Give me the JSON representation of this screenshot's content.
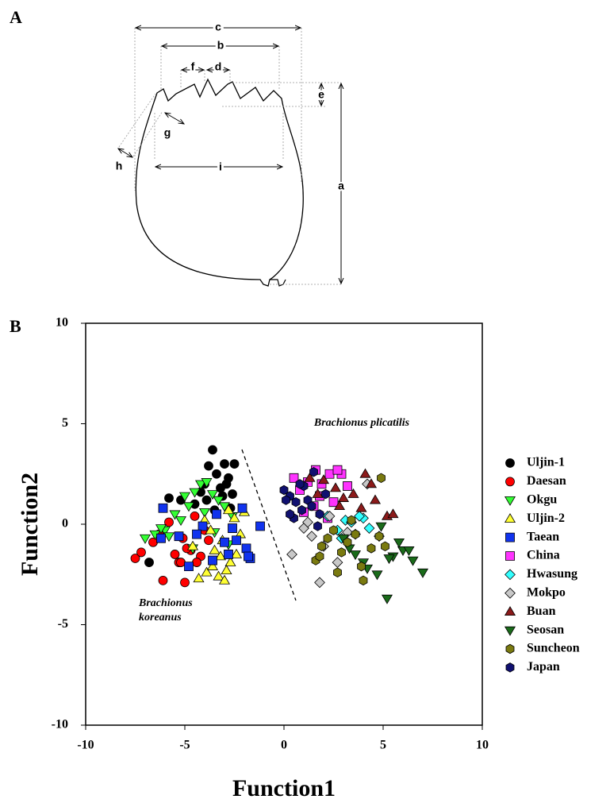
{
  "figure": {
    "panel_a": "A",
    "panel_b": "B",
    "diagram_labels": [
      "a",
      "b",
      "c",
      "d",
      "e",
      "f",
      "g",
      "h",
      "i"
    ]
  },
  "chart_data": {
    "type": "scatter",
    "x_label": "Function1",
    "y_label": "Function2",
    "xlim": [
      -10,
      10
    ],
    "ylim": [
      -10,
      10
    ],
    "xticks": [
      -10,
      -5,
      0,
      5,
      10
    ],
    "yticks": [
      -10,
      -5,
      0,
      5,
      10
    ],
    "grid": false,
    "legend": "right",
    "annotations": [
      "Brachionus plicatilis",
      "Brachionus",
      "koreanus"
    ],
    "series": [
      {
        "name": "Uljin-1",
        "color": "#000000",
        "marker": "circle",
        "x": [
          -3.6,
          -3,
          -2.5,
          -2.8,
          -3.4,
          -4,
          -3.2,
          -2.6,
          -3.9,
          -5.2,
          -5.8,
          -4.5,
          -3.5,
          -3.1,
          -2.9,
          -4.2,
          -6.8,
          -3.8,
          -2.7
        ],
        "values": [
          3.7,
          3,
          3,
          2.3,
          2.5,
          2,
          1.8,
          1.5,
          1.2,
          1.2,
          1.3,
          1,
          0.7,
          1.4,
          2,
          1.6,
          -1.9,
          2.9,
          0.8
        ]
      },
      {
        "name": "Daesan",
        "color": "#ff0000",
        "marker": "circle",
        "x": [
          -7.5,
          -7.2,
          -6.1,
          -5,
          -5.5,
          -5.3,
          -4.7,
          -4.2,
          -5.1,
          -4.9,
          -4,
          -6.3,
          -5.8,
          -4.5,
          -3.8,
          -6.6,
          -5.2,
          -4.4
        ],
        "values": [
          -1.7,
          -1.4,
          -2.8,
          -2.9,
          -1.5,
          -1.9,
          -1.3,
          -1.6,
          -0.7,
          -1.2,
          -0.3,
          -0.5,
          0.1,
          0.4,
          -0.8,
          -0.9,
          -1.9,
          -1.9
        ]
      },
      {
        "name": "Okgu",
        "color": "#33ff33",
        "marker": "triangle-down",
        "x": [
          -7,
          -6.5,
          -6,
          -5.5,
          -5,
          -4.5,
          -4.2,
          -3.9,
          -3.6,
          -3.3,
          -3,
          -2.6,
          -4.8,
          -5.8,
          -6.2,
          -4,
          -3.5,
          -2.8,
          -5.2,
          -4.6
        ],
        "values": [
          -0.7,
          -0.5,
          -0.3,
          0.5,
          1.4,
          1.6,
          2,
          2.1,
          1.5,
          1.2,
          0.9,
          0.4,
          0.9,
          -0.6,
          -0.2,
          0.6,
          -0.4,
          -1,
          0.2,
          -1.2
        ]
      },
      {
        "name": "Uljin-2",
        "color": "#ffff33",
        "marker": "triangle-up",
        "x": [
          -4.3,
          -3.9,
          -3.6,
          -3.3,
          -3,
          -2.7,
          -2.4,
          -2,
          -2.2,
          -3.5,
          -3.1,
          -2.8,
          -4,
          -3.7,
          -2.5,
          -3.2,
          -2.9,
          -4.6
        ],
        "values": [
          -2.7,
          -2.4,
          -2.1,
          -2.6,
          -2.8,
          -1.9,
          -1.5,
          0.6,
          -0.5,
          -1.3,
          -0.8,
          0.7,
          0.2,
          -0.3,
          0.3,
          -1.6,
          -2.3,
          -1.1
        ]
      },
      {
        "name": "Taean",
        "color": "#1133ee",
        "marker": "square",
        "x": [
          -6.1,
          -6.2,
          -5.3,
          -4.8,
          -4.1,
          -3.4,
          -3,
          -2.6,
          -2.1,
          -1.9,
          -1.7,
          -1.2,
          -2.4,
          -3.6,
          -4.4,
          -2.8,
          -1.8
        ],
        "values": [
          0.8,
          -0.7,
          -0.6,
          -2.1,
          -0.1,
          0.5,
          -0.9,
          -0.2,
          0.8,
          -1.2,
          -1.7,
          -0.1,
          -0.8,
          -1.8,
          -0.5,
          -1.5,
          -1.6
        ]
      },
      {
        "name": "China",
        "color": "#ff33ff",
        "marker": "square",
        "x": [
          0.5,
          0.8,
          1.2,
          1.6,
          1.8,
          2.3,
          2.5,
          2.9,
          2.2,
          1.5,
          3.2,
          1,
          2.7,
          1.9
        ],
        "values": [
          2.3,
          1.7,
          2.1,
          2.7,
          1.4,
          2.5,
          1.1,
          2.5,
          0.3,
          0.9,
          1.9,
          0.6,
          2.7,
          2
        ]
      },
      {
        "name": "Hwasung",
        "color": "#33ffff",
        "marker": "diamond",
        "x": [
          2.2,
          2.7,
          3.1,
          3.6,
          4,
          4.3,
          2.9,
          3.4,
          4.8,
          3.8
        ],
        "values": [
          0.4,
          -0.3,
          0.2,
          -0.5,
          0.3,
          -0.2,
          -0.7,
          0.1,
          -0.6,
          0.4
        ]
      },
      {
        "name": "Mokpo",
        "color": "#c8c8c8",
        "marker": "diamond",
        "x": [
          0.4,
          1,
          1.4,
          1.8,
          2.3,
          2.7,
          3.2,
          4.2,
          1.2,
          2
        ],
        "values": [
          -1.5,
          -0.2,
          -0.6,
          -2.9,
          0.4,
          -1.9,
          -0.4,
          2,
          0.1,
          -1.1
        ]
      },
      {
        "name": "Buan",
        "color": "#8b1a1a",
        "marker": "triangle-up",
        "x": [
          1.3,
          2,
          2.6,
          3,
          3.5,
          4.1,
          4.6,
          5.2,
          5.5,
          3.9,
          2.8,
          4.4,
          1.7
        ],
        "values": [
          2.3,
          2.2,
          1.8,
          1.3,
          1.5,
          2.5,
          1.2,
          0.4,
          0.5,
          0.8,
          0.9,
          2,
          1.5
        ]
      },
      {
        "name": "Seosan",
        "color": "#1a6b1a",
        "marker": "triangle-down",
        "x": [
          3,
          3.6,
          4.2,
          4.7,
          5.2,
          5.5,
          6,
          6.5,
          7,
          5.3,
          5.8,
          4,
          4.9,
          3.3,
          6.3
        ],
        "values": [
          -0.7,
          -1.5,
          -2.2,
          -2.5,
          -3.7,
          -1.6,
          -1.3,
          -1.8,
          -2.4,
          -1.7,
          -0.9,
          -1.9,
          -0.1,
          -1.2,
          -1.3
        ]
      },
      {
        "name": "Suncheon",
        "color": "#7a7a10",
        "marker": "hexagon",
        "x": [
          1.6,
          1.9,
          2.2,
          2.5,
          2.9,
          3.2,
          3.6,
          4,
          4.4,
          4.8,
          5.1,
          3.9,
          2.7,
          1.8,
          4.9,
          3.4
        ],
        "values": [
          -1.8,
          -1.1,
          -0.7,
          -0.3,
          -1.4,
          -0.9,
          -0.5,
          -2.8,
          -1.2,
          -0.6,
          -1.1,
          -2.1,
          -2.4,
          -1.6,
          2.3,
          0.2
        ]
      },
      {
        "name": "Japan",
        "color": "#101070",
        "marker": "hexagon",
        "x": [
          0,
          0.3,
          0.6,
          0.9,
          1.2,
          1.5,
          1.8,
          0.1,
          0.5,
          1,
          1.4,
          2.1,
          0.8,
          0.3,
          1.7
        ],
        "values": [
          1.7,
          1.4,
          1.1,
          0.7,
          1.2,
          2.6,
          0.5,
          1.2,
          0.3,
          1.9,
          0.9,
          1.5,
          2,
          0.5,
          -0.1
        ]
      }
    ]
  }
}
